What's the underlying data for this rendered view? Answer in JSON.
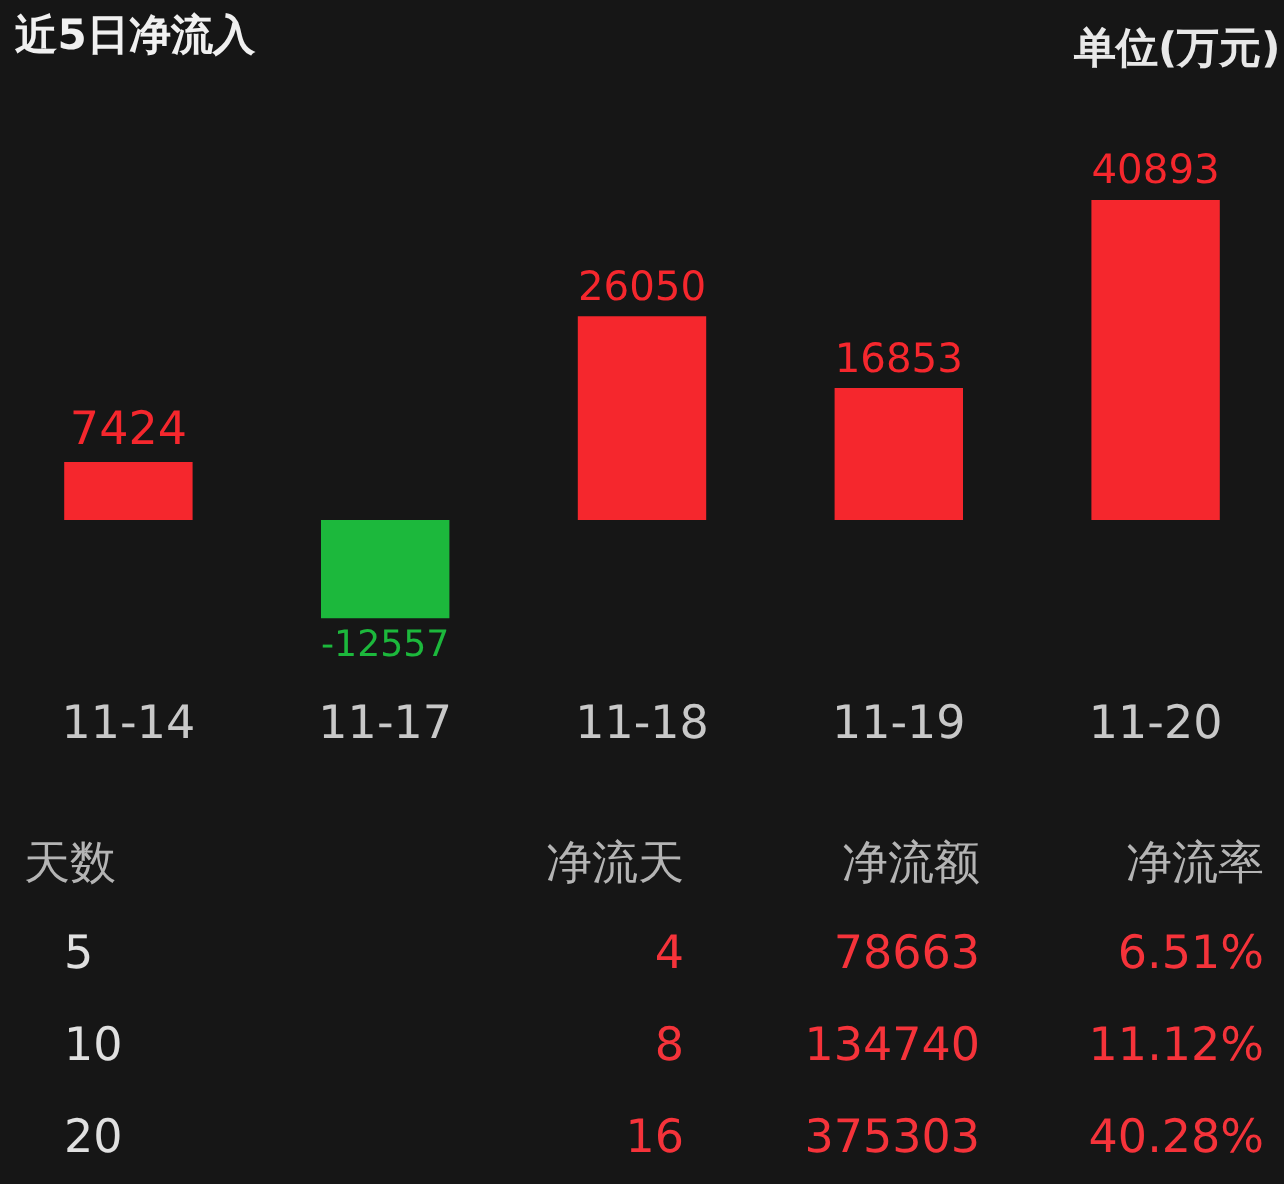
{
  "chart_data": [
    {
      "type": "bar",
      "title": "近5日净流入",
      "ylabel": "单位(万元)",
      "categories": [
        "11-14",
        "11-17",
        "11-18",
        "11-19",
        "11-20"
      ],
      "values": [
        7424,
        -12557,
        26050,
        16853,
        40893
      ],
      "colors": [
        "#f5272d",
        "#1cb83c",
        "#f5272d",
        "#f5272d",
        "#f5272d"
      ],
      "data_labels": true,
      "tick_labels": "x"
    },
    {
      "type": "other",
      "annotations": [
        "天数",
        "净流天",
        "净流额",
        "净流率",
        "5",
        "4",
        "78663",
        "6.51%",
        "10",
        "8",
        "134740",
        "11.12%",
        "20",
        "16",
        "375303",
        "40.28%"
      ]
    }
  ]
}
